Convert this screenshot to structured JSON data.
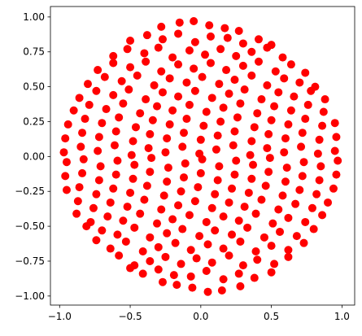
{
  "chart_data": {
    "type": "scatter",
    "color": "#ff0000",
    "xlim": [
      -1.065,
      1.09
    ],
    "ylim": [
      -1.065,
      1.075
    ],
    "xticks": [
      {
        "value": -1.0,
        "label": "−1.0"
      },
      {
        "value": -0.5,
        "label": "−0.5"
      },
      {
        "value": 0,
        "label": "0.0"
      },
      {
        "value": 0.5,
        "label": "0.5"
      },
      {
        "value": 1.0,
        "label": "1.0"
      }
    ],
    "yticks": [
      {
        "value": -1.0,
        "label": "−1.00"
      },
      {
        "value": -0.75,
        "label": "−0.75"
      },
      {
        "value": -0.5,
        "label": "−0.50"
      },
      {
        "value": -0.25,
        "label": "−0.25"
      },
      {
        "value": 0,
        "label": "0.00"
      },
      {
        "value": 0.25,
        "label": "0.25"
      },
      {
        "value": 0.5,
        "label": "0.50"
      },
      {
        "value": 0.75,
        "label": "0.75"
      },
      {
        "value": 1.0,
        "label": "1.00"
      }
    ],
    "x": [
      -0.28,
      -0.15,
      -0.05,
      0.06,
      0.17,
      0.27,
      -0.5,
      -0.38,
      -0.27,
      -0.16,
      -0.04,
      0.07,
      0.19,
      0.3,
      0.41,
      0.5,
      -0.62,
      -0.52,
      -0.4,
      -0.3,
      -0.2,
      -0.08,
      0.03,
      0.14,
      0.25,
      0.36,
      0.47,
      0.58,
      -0.73,
      -0.62,
      -0.5,
      -0.39,
      -0.28,
      -0.16,
      -0.05,
      0.07,
      0.18,
      0.3,
      0.41,
      0.53,
      0.64,
      0.74,
      -0.8,
      -0.68,
      -0.56,
      -0.45,
      -0.33,
      -0.22,
      -0.1,
      0.01,
      0.13,
      0.24,
      0.36,
      0.47,
      0.59,
      0.7,
      0.81,
      -0.86,
      -0.74,
      -0.62,
      -0.51,
      -0.39,
      -0.27,
      -0.16,
      -0.04,
      0.08,
      0.2,
      0.31,
      0.43,
      0.55,
      0.66,
      0.78,
      0.88,
      -0.9,
      -0.79,
      -0.67,
      -0.55,
      -0.43,
      -0.31,
      -0.2,
      -0.08,
      0.04,
      0.16,
      0.28,
      0.4,
      0.52,
      0.64,
      0.76,
      0.87,
      -0.94,
      -0.82,
      -0.7,
      -0.58,
      -0.46,
      -0.34,
      -0.22,
      -0.1,
      0.02,
      0.14,
      0.26,
      0.38,
      0.5,
      0.62,
      0.74,
      0.86,
      0.95,
      -0.96,
      -0.84,
      -0.72,
      -0.6,
      -0.48,
      -0.36,
      -0.24,
      -0.12,
      0,
      0.12,
      0.24,
      0.36,
      0.48,
      0.6,
      0.72,
      0.84,
      0.96,
      -0.97,
      -0.85,
      -0.73,
      -0.61,
      -0.49,
      -0.37,
      -0.25,
      -0.13,
      -0.01,
      0.11,
      0.23,
      0.35,
      0.47,
      0.59,
      0.71,
      0.83,
      0.95,
      0.28,
      0.15,
      0.05,
      -0.06,
      -0.17,
      -0.27,
      0.5,
      0.38,
      0.27,
      0.16,
      0.04,
      -0.07,
      -0.19,
      -0.3,
      -0.41,
      -0.5,
      0.62,
      0.52,
      0.4,
      0.3,
      0.2,
      0.08,
      -0.03,
      -0.14,
      -0.25,
      -0.36,
      -0.47,
      -0.58,
      0.73,
      0.62,
      0.5,
      0.39,
      0.28,
      0.16,
      0.05,
      -0.07,
      -0.18,
      -0.3,
      -0.41,
      -0.53,
      -0.64,
      -0.74,
      0.8,
      0.68,
      0.56,
      0.45,
      0.33,
      0.22,
      0.1,
      -0.01,
      -0.13,
      -0.24,
      -0.36,
      -0.47,
      -0.59,
      -0.7,
      -0.81,
      0.86,
      0.74,
      0.62,
      0.51,
      0.39,
      0.27,
      0.16,
      0.04,
      -0.08,
      -0.2,
      -0.31,
      -0.43,
      -0.55,
      -0.66,
      -0.78,
      -0.88,
      0.9,
      0.79,
      0.67,
      0.55,
      0.43,
      0.31,
      0.2,
      0.08,
      -0.04,
      -0.16,
      -0.28,
      -0.4,
      -0.52,
      -0.64,
      -0.76,
      -0.87,
      0.94,
      0.82,
      0.7,
      0.58,
      0.46,
      0.34,
      0.22,
      0.1,
      -0.02,
      -0.14,
      -0.26,
      -0.38,
      -0.5,
      -0.62,
      -0.74,
      -0.86,
      -0.95,
      0.96,
      0.84,
      0.72,
      0.6,
      0.48,
      0.36,
      0.24,
      0.12,
      0,
      -0.12,
      -0.24,
      -0.36,
      -0.48,
      -0.6,
      -0.72,
      -0.84,
      -0.96,
      0.97,
      0.85,
      0.73,
      0.61,
      0.49,
      0.37,
      0.25,
      0.13,
      0.01,
      -0.11,
      -0.23,
      -0.35,
      -0.47,
      -0.59,
      -0.71,
      -0.83,
      -0.95
    ],
    "values": [
      0.93,
      0.96,
      0.97,
      0.94,
      0.92,
      0.9,
      0.83,
      0.87,
      0.84,
      0.88,
      0.82,
      0.86,
      0.85,
      0.81,
      0.84,
      0.8,
      0.72,
      0.77,
      0.74,
      0.78,
      0.71,
      0.76,
      0.73,
      0.77,
      0.72,
      0.75,
      0.78,
      0.71,
      0.62,
      0.67,
      0.64,
      0.68,
      0.61,
      0.66,
      0.63,
      0.67,
      0.62,
      0.65,
      0.68,
      0.61,
      0.66,
      0.6,
      0.52,
      0.57,
      0.54,
      0.58,
      0.51,
      0.56,
      0.53,
      0.57,
      0.52,
      0.55,
      0.58,
      0.51,
      0.56,
      0.53,
      0.5,
      0.42,
      0.47,
      0.44,
      0.48,
      0.41,
      0.46,
      0.43,
      0.47,
      0.42,
      0.45,
      0.48,
      0.41,
      0.46,
      0.43,
      0.47,
      0.41,
      0.33,
      0.37,
      0.34,
      0.38,
      0.31,
      0.36,
      0.33,
      0.37,
      0.32,
      0.35,
      0.38,
      0.31,
      0.36,
      0.33,
      0.37,
      0.32,
      0.23,
      0.27,
      0.24,
      0.28,
      0.21,
      0.26,
      0.23,
      0.27,
      0.22,
      0.25,
      0.28,
      0.21,
      0.26,
      0.23,
      0.27,
      0.22,
      0.24,
      0.13,
      0.17,
      0.14,
      0.18,
      0.11,
      0.16,
      0.13,
      0.17,
      0.12,
      0.15,
      0.18,
      0.11,
      0.16,
      0.13,
      0.17,
      0.12,
      0.14,
      0.03,
      0.07,
      0.04,
      0.08,
      0.01,
      0.06,
      0.03,
      0.07,
      0.02,
      0.05,
      0.08,
      0.01,
      0.06,
      0.03,
      0.07,
      0.02,
      0.04,
      -0.93,
      -0.96,
      -0.97,
      -0.94,
      -0.92,
      -0.9,
      -0.83,
      -0.87,
      -0.84,
      -0.88,
      -0.82,
      -0.86,
      -0.85,
      -0.81,
      -0.84,
      -0.8,
      -0.72,
      -0.77,
      -0.74,
      -0.78,
      -0.71,
      -0.76,
      -0.73,
      -0.77,
      -0.72,
      -0.75,
      -0.78,
      -0.71,
      -0.62,
      -0.67,
      -0.64,
      -0.68,
      -0.61,
      -0.66,
      -0.63,
      -0.67,
      -0.62,
      -0.65,
      -0.68,
      -0.61,
      -0.66,
      -0.6,
      -0.52,
      -0.57,
      -0.54,
      -0.58,
      -0.51,
      -0.56,
      -0.53,
      -0.57,
      -0.52,
      -0.55,
      -0.58,
      -0.51,
      -0.56,
      -0.53,
      -0.5,
      -0.42,
      -0.47,
      -0.44,
      -0.48,
      -0.41,
      -0.46,
      -0.43,
      -0.47,
      -0.42,
      -0.45,
      -0.48,
      -0.41,
      -0.46,
      -0.43,
      -0.47,
      -0.41,
      -0.33,
      -0.37,
      -0.34,
      -0.38,
      -0.31,
      -0.36,
      -0.33,
      -0.37,
      -0.32,
      -0.35,
      -0.38,
      -0.31,
      -0.36,
      -0.33,
      -0.37,
      -0.32,
      -0.23,
      -0.27,
      -0.24,
      -0.28,
      -0.21,
      -0.26,
      -0.23,
      -0.27,
      -0.22,
      -0.25,
      -0.28,
      -0.21,
      -0.26,
      -0.23,
      -0.27,
      -0.22,
      -0.24,
      -0.13,
      -0.17,
      -0.14,
      -0.18,
      -0.11,
      -0.16,
      -0.13,
      -0.17,
      -0.12,
      -0.15,
      -0.18,
      -0.11,
      -0.16,
      -0.13,
      -0.17,
      -0.12,
      -0.14,
      -0.03,
      -0.07,
      -0.04,
      -0.08,
      -0.01,
      -0.06,
      -0.03,
      -0.07,
      -0.02,
      -0.05,
      -0.08,
      -0.01,
      -0.06,
      -0.03,
      -0.07,
      -0.02,
      -0.04
    ]
  }
}
